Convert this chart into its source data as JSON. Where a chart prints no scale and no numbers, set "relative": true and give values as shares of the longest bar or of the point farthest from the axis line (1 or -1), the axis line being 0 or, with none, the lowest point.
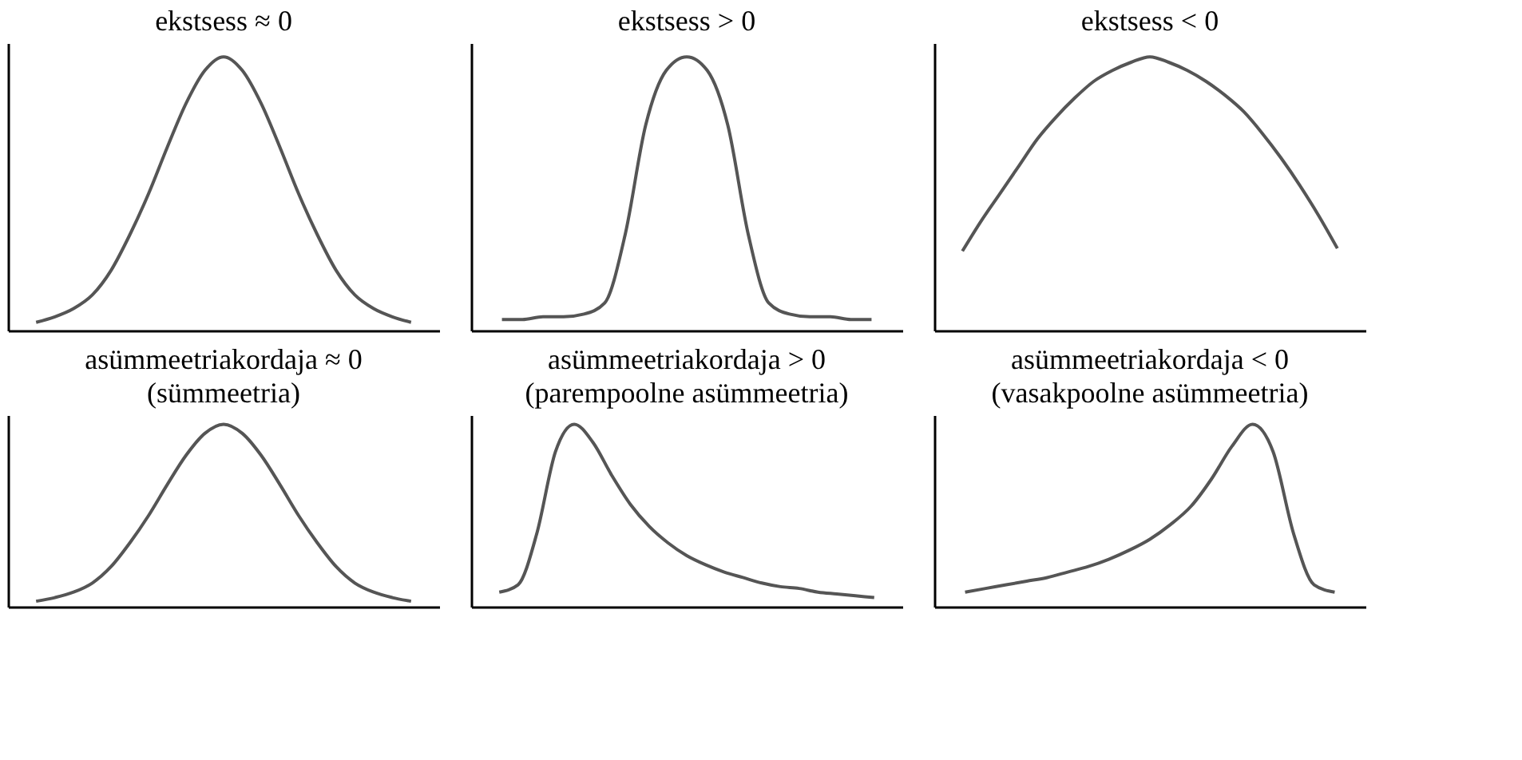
{
  "chart_data": [
    {
      "type": "line",
      "title": "ekstsess ≈ 0",
      "relative": true,
      "tick_labels": false,
      "grid": false,
      "marker": "none",
      "line_style": "solid",
      "categories": [
        null,
        null,
        null,
        null,
        null,
        null,
        null,
        null,
        null,
        null,
        null,
        null,
        null,
        null,
        null,
        null,
        null,
        null,
        null,
        null,
        null
      ],
      "series": [
        {
          "color": "#555555",
          "values": [
            0.03,
            0.05,
            0.08,
            0.13,
            0.22,
            0.35,
            0.5,
            0.67,
            0.83,
            0.95,
            1,
            0.95,
            0.83,
            0.67,
            0.5,
            0.35,
            0.22,
            0.13,
            0.08,
            0.05,
            0.03
          ]
        }
      ]
    },
    {
      "type": "line",
      "title": "ekstsess > 0",
      "relative": true,
      "tick_labels": false,
      "grid": false,
      "marker": "none",
      "line_style": "solid",
      "categories": [
        null,
        null,
        null,
        null,
        null,
        null,
        null,
        null,
        null,
        null,
        null,
        null,
        null,
        null,
        null,
        null,
        null,
        null,
        null
      ],
      "series": [
        {
          "color": "#555555",
          "values": [
            0.04,
            0.04,
            0.05,
            0.05,
            0.06,
            0.1,
            0.35,
            0.75,
            0.95,
            1,
            0.95,
            0.75,
            0.35,
            0.1,
            0.06,
            0.05,
            0.05,
            0.04,
            0.04
          ]
        }
      ]
    },
    {
      "type": "line",
      "title": "ekstsess < 0",
      "relative": true,
      "tick_labels": false,
      "grid": false,
      "marker": "none",
      "line_style": "solid",
      "categories": [
        null,
        null,
        null,
        null,
        null,
        null,
        null,
        null,
        null,
        null,
        null,
        null,
        null,
        null,
        null,
        null,
        null,
        null,
        null,
        null,
        null
      ],
      "series": [
        {
          "color": "#555555",
          "values": [
            0.29,
            0.4,
            0.5,
            0.6,
            0.7,
            0.78,
            0.85,
            0.91,
            0.95,
            0.98,
            1,
            0.98,
            0.95,
            0.91,
            0.86,
            0.8,
            0.72,
            0.63,
            0.53,
            0.42,
            0.3
          ]
        }
      ]
    },
    {
      "type": "line",
      "title": "asümmeetriakordaja ≈ 0",
      "subtitle": "(sümmeetria)",
      "relative": true,
      "tick_labels": false,
      "grid": false,
      "marker": "none",
      "line_style": "solid",
      "categories": [
        null,
        null,
        null,
        null,
        null,
        null,
        null,
        null,
        null,
        null,
        null,
        null,
        null,
        null,
        null,
        null,
        null,
        null,
        null,
        null,
        null
      ],
      "series": [
        {
          "color": "#555555",
          "values": [
            0.03,
            0.05,
            0.08,
            0.13,
            0.22,
            0.35,
            0.5,
            0.67,
            0.83,
            0.95,
            1,
            0.95,
            0.83,
            0.67,
            0.5,
            0.35,
            0.22,
            0.13,
            0.08,
            0.05,
            0.03
          ]
        }
      ]
    },
    {
      "type": "line",
      "title": "asümmeetriakordaja > 0",
      "subtitle": "(parempoolne asümmeetria)",
      "relative": true,
      "tick_labels": false,
      "grid": false,
      "marker": "none",
      "line_style": "solid",
      "categories": [
        null,
        null,
        null,
        null,
        null,
        null,
        null,
        null,
        null,
        null,
        null,
        null,
        null,
        null,
        null,
        null,
        null,
        null,
        null,
        null,
        null
      ],
      "series": [
        {
          "color": "#555555",
          "values": [
            0.08,
            0.12,
            0.4,
            0.85,
            1,
            0.9,
            0.72,
            0.56,
            0.44,
            0.35,
            0.28,
            0.23,
            0.19,
            0.16,
            0.13,
            0.11,
            0.1,
            0.08,
            0.07,
            0.06,
            0.05
          ]
        }
      ]
    },
    {
      "type": "line",
      "title": "asümmeetriakordaja < 0",
      "subtitle": "(vasakpoolne asümmeetria)",
      "relative": true,
      "tick_labels": false,
      "grid": false,
      "marker": "none",
      "line_style": "solid",
      "categories": [
        null,
        null,
        null,
        null,
        null,
        null,
        null,
        null,
        null,
        null,
        null,
        null,
        null,
        null,
        null,
        null,
        null,
        null,
        null
      ],
      "series": [
        {
          "color": "#555555",
          "values": [
            0.08,
            0.1,
            0.12,
            0.14,
            0.16,
            0.19,
            0.22,
            0.26,
            0.31,
            0.37,
            0.45,
            0.55,
            0.7,
            0.88,
            1,
            0.85,
            0.4,
            0.12,
            0.08
          ]
        }
      ]
    }
  ]
}
